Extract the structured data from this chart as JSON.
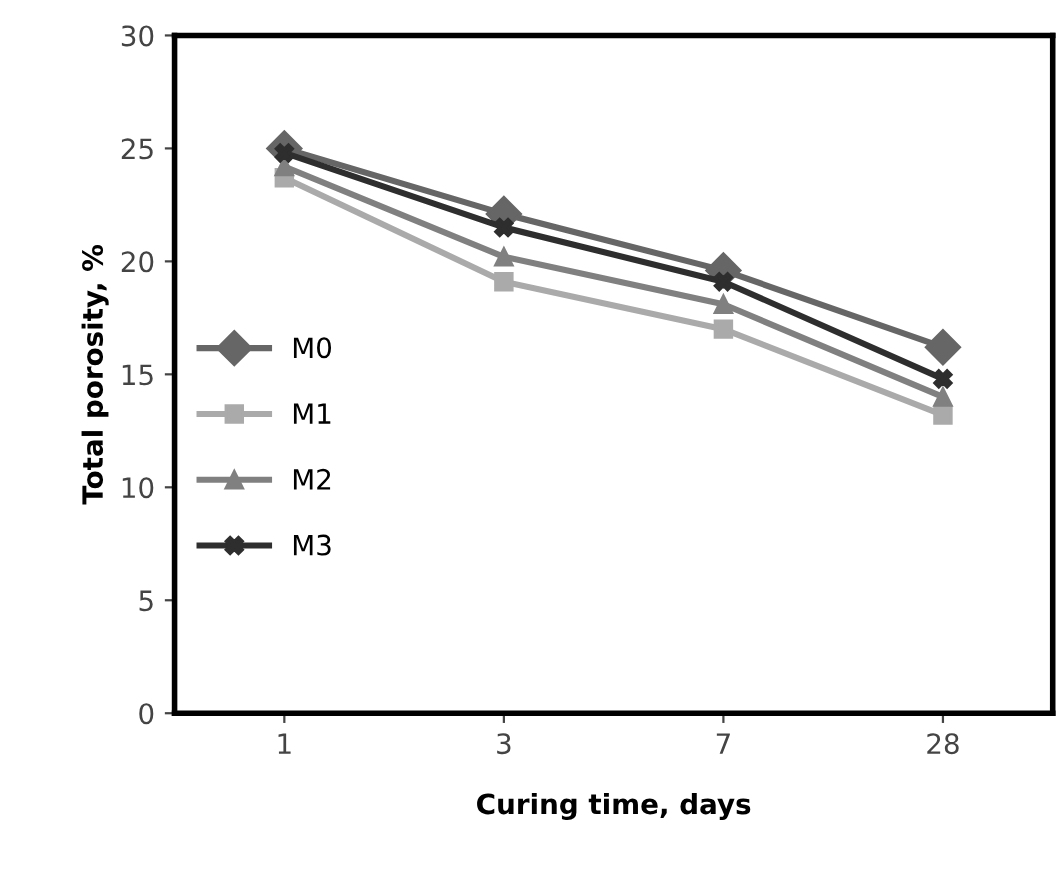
{
  "chart_data": {
    "type": "line",
    "xlabel": "Curing time, days",
    "ylabel": "Total porosity, %",
    "categories": [
      "1",
      "3",
      "7",
      "28"
    ],
    "series": [
      {
        "name": "M0",
        "color": "#666666",
        "marker": "diamond",
        "values": [
          25.0,
          22.1,
          19.6,
          16.2
        ]
      },
      {
        "name": "M1",
        "color": "#aaaaaa",
        "marker": "square",
        "values": [
          23.7,
          19.1,
          17.0,
          13.2
        ]
      },
      {
        "name": "M2",
        "color": "#808080",
        "marker": "triangle",
        "values": [
          24.2,
          20.2,
          18.1,
          14.0
        ]
      },
      {
        "name": "M3",
        "color": "#2e2e2e",
        "marker": "cross",
        "values": [
          24.8,
          21.5,
          19.1,
          14.8
        ]
      }
    ],
    "ylim": [
      0,
      30
    ],
    "yticks": [
      0,
      5,
      10,
      15,
      20,
      25,
      30
    ],
    "grid": false,
    "legend": "left",
    "line_style": "solid"
  }
}
